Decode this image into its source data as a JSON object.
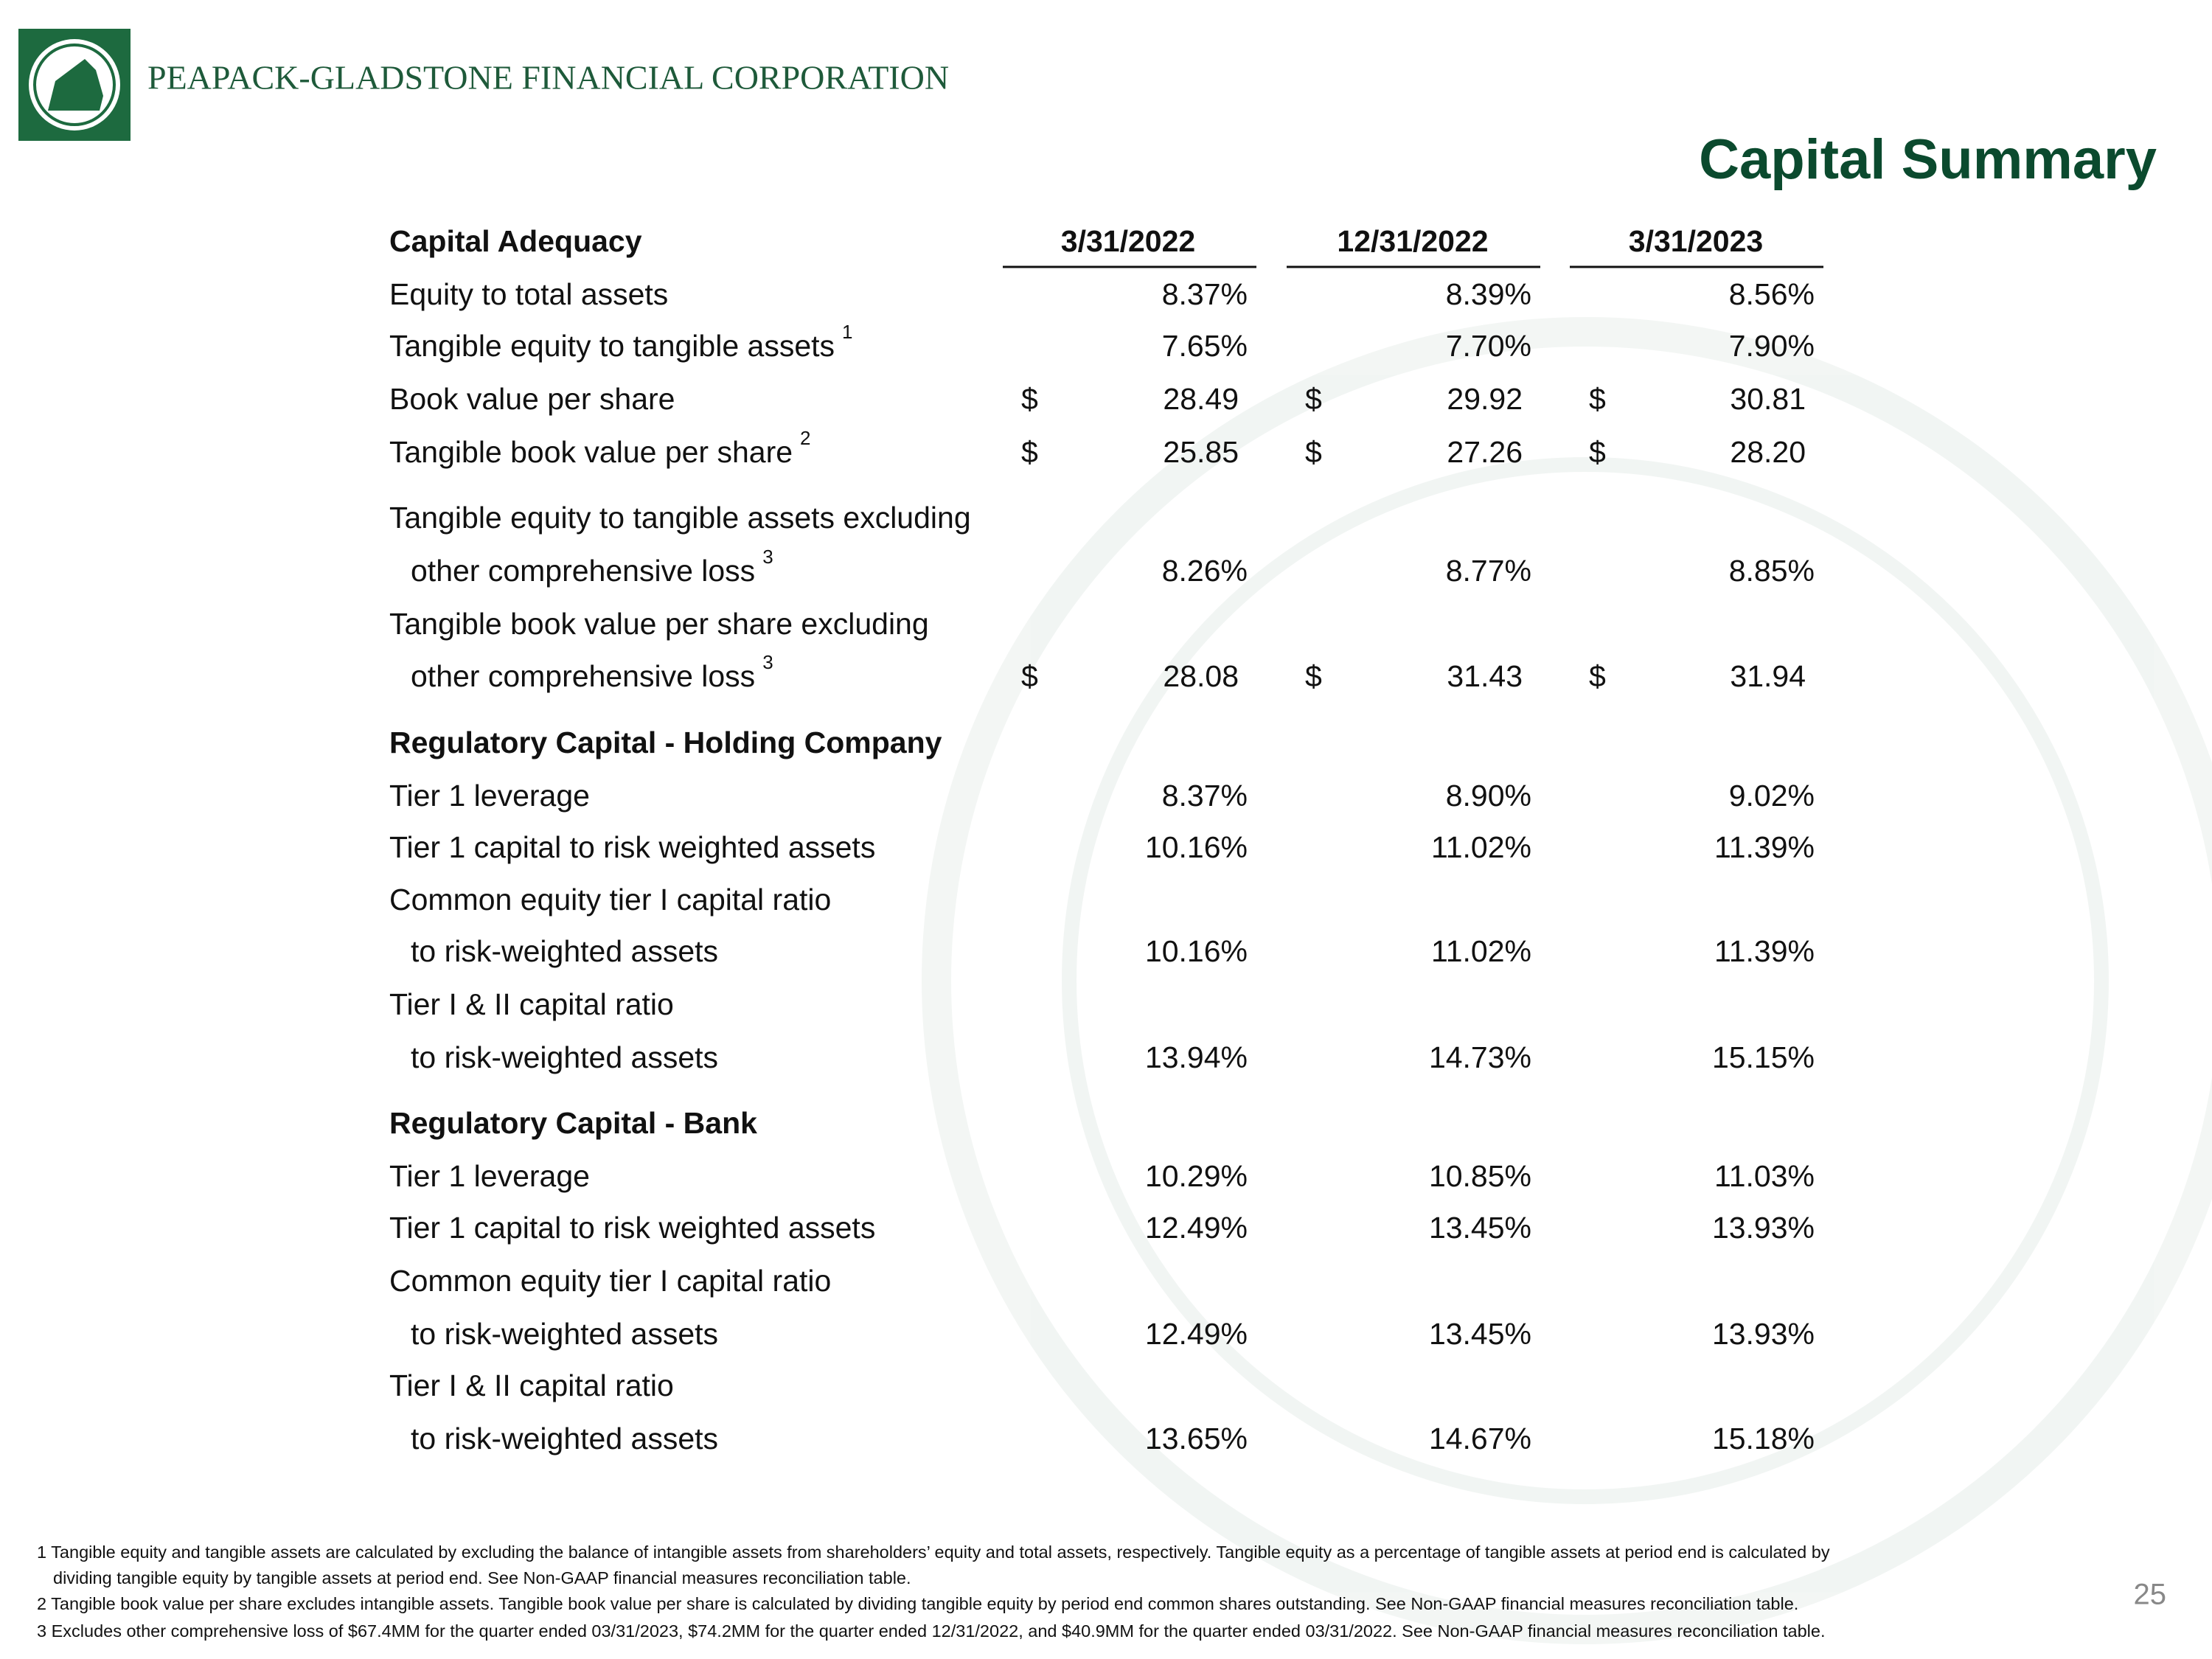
{
  "header": {
    "company": "PEAPACK-GLADSTONE FINANCIAL CORPORATION",
    "title": "Capital Summary"
  },
  "table": {
    "columns": [
      "Capital Adequacy",
      "3/31/2022",
      "12/31/2022",
      "3/31/2023"
    ],
    "rows": [
      {
        "label": "Equity to total assets",
        "values": [
          "8.37%",
          "8.39%",
          "8.56%"
        ]
      },
      {
        "label": "Tangible equity to tangible assets",
        "note": "1",
        "values": [
          "7.65%",
          "7.70%",
          "7.90%"
        ]
      },
      {
        "label": "Book value per share",
        "currency": "$",
        "values": [
          "28.49",
          "29.92",
          "30.81"
        ]
      },
      {
        "label": "Tangible book value per share",
        "note": "2",
        "currency": "$",
        "values": [
          "25.85",
          "27.26",
          "28.20"
        ]
      },
      {
        "label": "Tangible equity to tangible assets excluding"
      },
      {
        "label": "other comprehensive loss",
        "indent": true,
        "note": "3",
        "values": [
          "8.26%",
          "8.77%",
          "8.85%"
        ]
      },
      {
        "label": "Tangible book value per share excluding"
      },
      {
        "label": "other comprehensive loss",
        "indent": true,
        "note": "3",
        "currency": "$",
        "values": [
          "28.08",
          "31.43",
          "31.94"
        ]
      },
      {
        "label": "Regulatory Capital - Holding Company",
        "bold": true
      },
      {
        "label": "Tier 1 leverage",
        "values": [
          "8.37%",
          "8.90%",
          "9.02%"
        ]
      },
      {
        "label": "Tier 1 capital to risk weighted assets",
        "values": [
          "10.16%",
          "11.02%",
          "11.39%"
        ]
      },
      {
        "label": "Common equity tier I capital ratio"
      },
      {
        "label": "to risk-weighted assets",
        "indent": true,
        "values": [
          "10.16%",
          "11.02%",
          "11.39%"
        ]
      },
      {
        "label": "Tier I & II capital ratio"
      },
      {
        "label": "to risk-weighted assets",
        "indent": true,
        "values": [
          "13.94%",
          "14.73%",
          "15.15%"
        ]
      },
      {
        "label": "Regulatory Capital - Bank",
        "bold": true
      },
      {
        "label": "Tier 1 leverage",
        "values": [
          "10.29%",
          "10.85%",
          "11.03%"
        ]
      },
      {
        "label": "Tier 1 capital to risk weighted assets",
        "values": [
          "12.49%",
          "13.45%",
          "13.93%"
        ]
      },
      {
        "label": "Common equity tier I capital ratio"
      },
      {
        "label": "to risk-weighted assets",
        "indent": true,
        "values": [
          "12.49%",
          "13.45%",
          "13.93%"
        ]
      },
      {
        "label": "Tier I & II capital ratio"
      },
      {
        "label": "to risk-weighted assets",
        "indent": true,
        "values": [
          "13.65%",
          "14.67%",
          "15.18%"
        ]
      }
    ]
  },
  "footnotes": [
    "1 Tangible equity and tangible assets are calculated by excluding the balance of intangible assets from shareholders’ equity and total assets, respectively. Tangible equity as a percentage of tangible assets at period end is calculated by",
    "dividing tangible equity by tangible assets at period end.  See Non-GAAP financial measures reconciliation table.",
    "2 Tangible book value per share excludes intangible assets.  Tangible book value per share is calculated by dividing tangible equity by period end common shares outstanding.  See Non-GAAP financial measures reconciliation table.",
    "3 Excludes other comprehensive loss of $67.4MM for the quarter ended 03/31/2023, $74.2MM for the quarter ended 12/31/2022, and $40.9MM for the quarter ended 03/31/2022.  See Non-GAAP financial measures reconciliation table."
  ],
  "page_number": "25"
}
